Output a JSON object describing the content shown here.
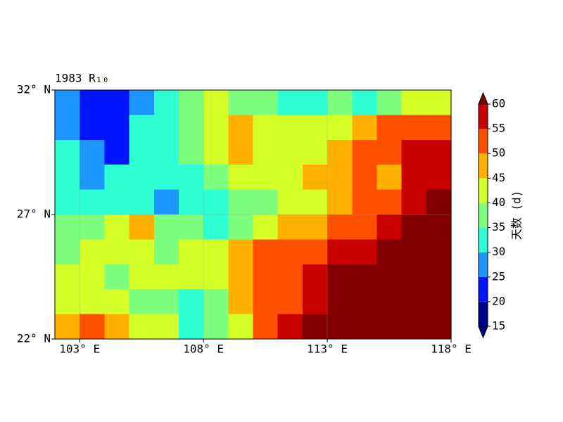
{
  "chart_data": {
    "type": "contour",
    "title": "1983 R₁₀",
    "colorbar_label": "天数 (d)",
    "x": [
      102.5,
      103.5,
      104.5,
      105.5,
      106.5,
      107.5,
      108.5,
      109.5,
      110.5,
      111.5,
      112.5,
      113.5,
      114.5,
      115.5,
      116.5,
      117.5
    ],
    "y": [
      31.5,
      30.5,
      29.5,
      28.5,
      27.5,
      26.5,
      25.5,
      24.5,
      23.5,
      22.5
    ],
    "z": [
      [
        25,
        20,
        22,
        28,
        33,
        36,
        42,
        38,
        36,
        30,
        33,
        36,
        33,
        38,
        40,
        40
      ],
      [
        27,
        22,
        23,
        30,
        33,
        38,
        42,
        47,
        42,
        42,
        42,
        43,
        45,
        50,
        50,
        50
      ],
      [
        31,
        27,
        24,
        30,
        33,
        36,
        40,
        47,
        42,
        42,
        43,
        48,
        52,
        53,
        55,
        57
      ],
      [
        31,
        28,
        32,
        33,
        30,
        33,
        37,
        42,
        42,
        42,
        45,
        48,
        50,
        48,
        55,
        58
      ],
      [
        34,
        33,
        33,
        33,
        28,
        30,
        33,
        36,
        38,
        40,
        43,
        47,
        52,
        53,
        57,
        60
      ],
      [
        37,
        38,
        40,
        46,
        38,
        35,
        33,
        38,
        43,
        45,
        48,
        52,
        53,
        57,
        61,
        62
      ],
      [
        37,
        40,
        40,
        42,
        38,
        40,
        43,
        47,
        52,
        52,
        53,
        55,
        58,
        62,
        63,
        62
      ],
      [
        42,
        43,
        38,
        40,
        40,
        42,
        44,
        47,
        52,
        53,
        57,
        61,
        63,
        63,
        63,
        62
      ],
      [
        42,
        43,
        40,
        38,
        36,
        33,
        38,
        46,
        50,
        53,
        58,
        62,
        63,
        63,
        64,
        63
      ],
      [
        48,
        52,
        48,
        43,
        40,
        33,
        38,
        43,
        52,
        57,
        61,
        63,
        63,
        63,
        64,
        63
      ]
    ],
    "xlim": [
      102,
      118
    ],
    "ylim": [
      22,
      32
    ],
    "xticks": [
      {
        "value": 103,
        "label": "103° E"
      },
      {
        "value": 108,
        "label": "108° E"
      },
      {
        "value": 113,
        "label": "113° E"
      },
      {
        "value": 118,
        "label": "118° E"
      }
    ],
    "yticks": [
      {
        "value": 22,
        "label": "22° N"
      },
      {
        "value": 27,
        "label": "27° N"
      },
      {
        "value": 32,
        "label": "32° N"
      }
    ],
    "levels": [
      15,
      20,
      25,
      30,
      35,
      40,
      45,
      50,
      55,
      60
    ],
    "colors": [
      "#00007f",
      "#00008b",
      "#0014ff",
      "#1e96ff",
      "#2effd4",
      "#7dff7d",
      "#d4ff29",
      "#ffb000",
      "#ff5000",
      "#c80000",
      "#800000"
    ],
    "extend": "both",
    "grid": true
  }
}
